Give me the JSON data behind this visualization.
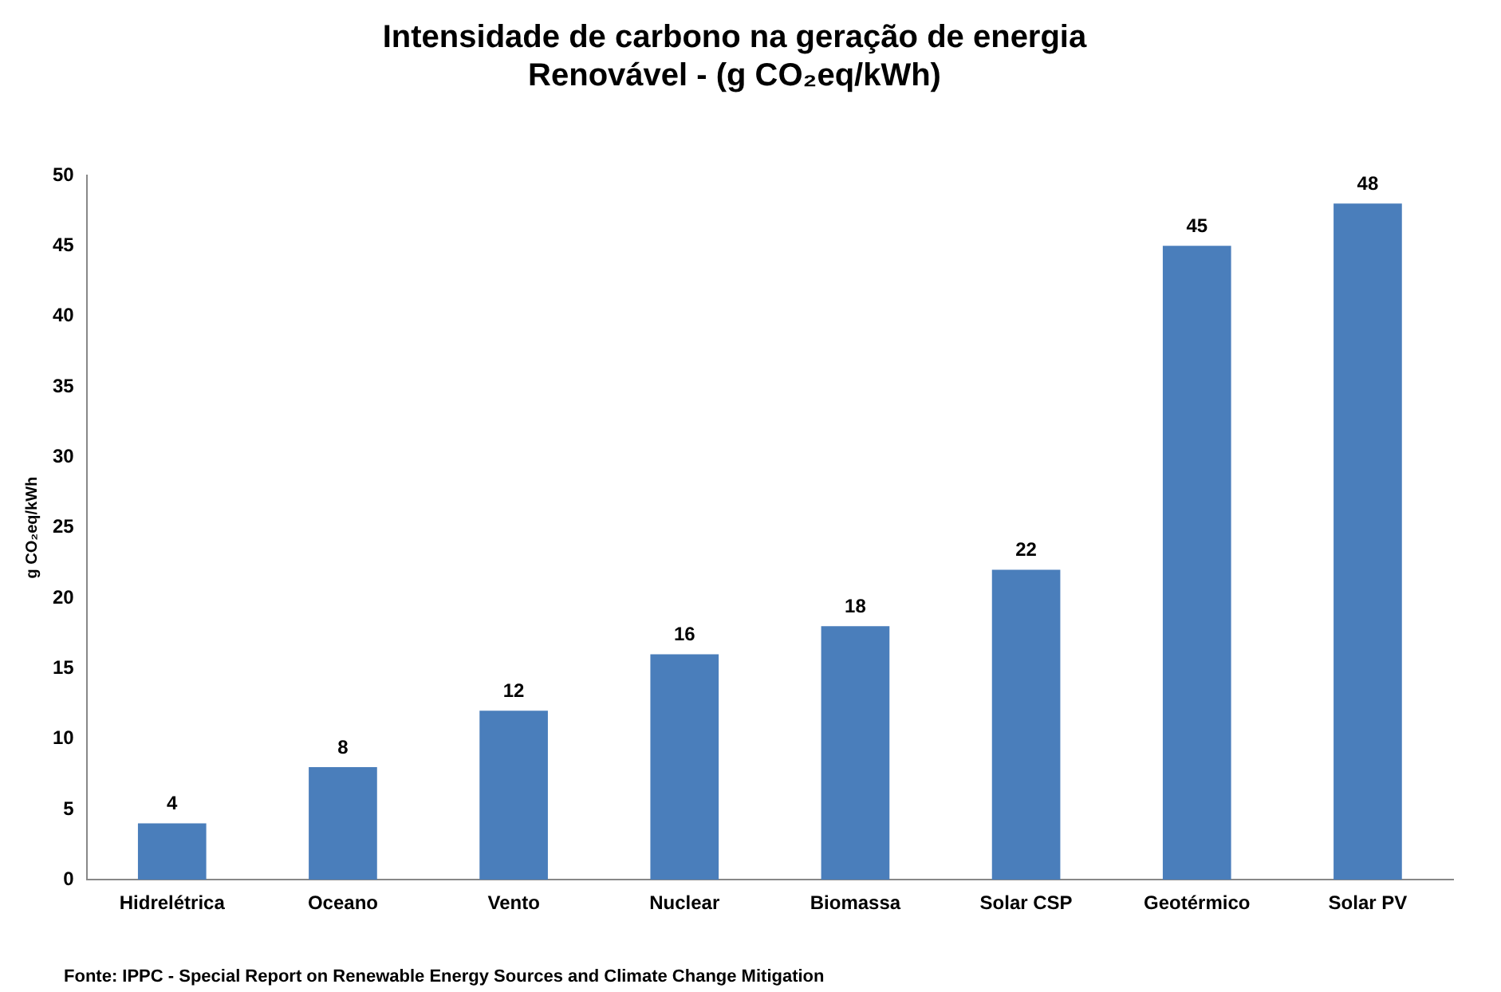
{
  "chart_data": {
    "type": "bar",
    "title": "Intensidade de carbono na geração de energia\nRenovável - (g CO₂eq/kWh)",
    "ylabel": "g CO₂eq/kWh",
    "categories": [
      "Hidrelétrica",
      "Oceano",
      "Vento",
      "Nuclear",
      "Biomassa",
      "Solar CSP",
      "Geotérmico",
      "Solar PV"
    ],
    "values": [
      4,
      8,
      12,
      16,
      18,
      22,
      45,
      48
    ],
    "color": "#4a7ebb",
    "ylim": [
      0,
      50
    ],
    "yticks": [
      0,
      5,
      10,
      15,
      20,
      25,
      30,
      35,
      40,
      45,
      50
    ],
    "grid": false,
    "data_labels": true,
    "annotations": [
      "Fonte: IPPC - Special Report on Renewable Energy Sources and Climate Change Mitigation"
    ]
  }
}
